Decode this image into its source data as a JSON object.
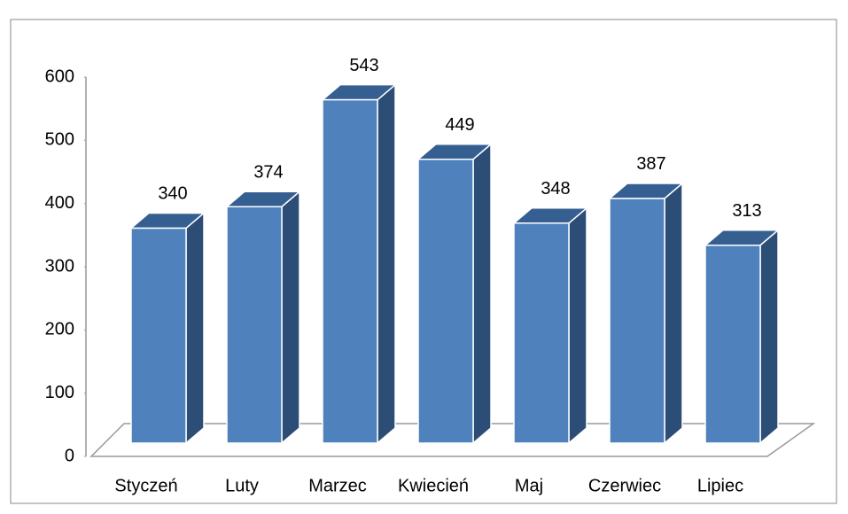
{
  "chart_data": {
    "type": "bar3d",
    "categories": [
      "Styczeń",
      "Luty",
      "Marzec",
      "Kwiecień",
      "Maj",
      "Czerwiec",
      "Lipiec"
    ],
    "values": [
      340,
      374,
      543,
      449,
      348,
      387,
      313
    ],
    "color": "#4f81bd",
    "side_color": "#2c4d75",
    "top_color": "#365f91",
    "ylim": [
      0,
      600
    ],
    "yticks": [
      0,
      100,
      200,
      300,
      400,
      500,
      600
    ],
    "grid": false
  }
}
